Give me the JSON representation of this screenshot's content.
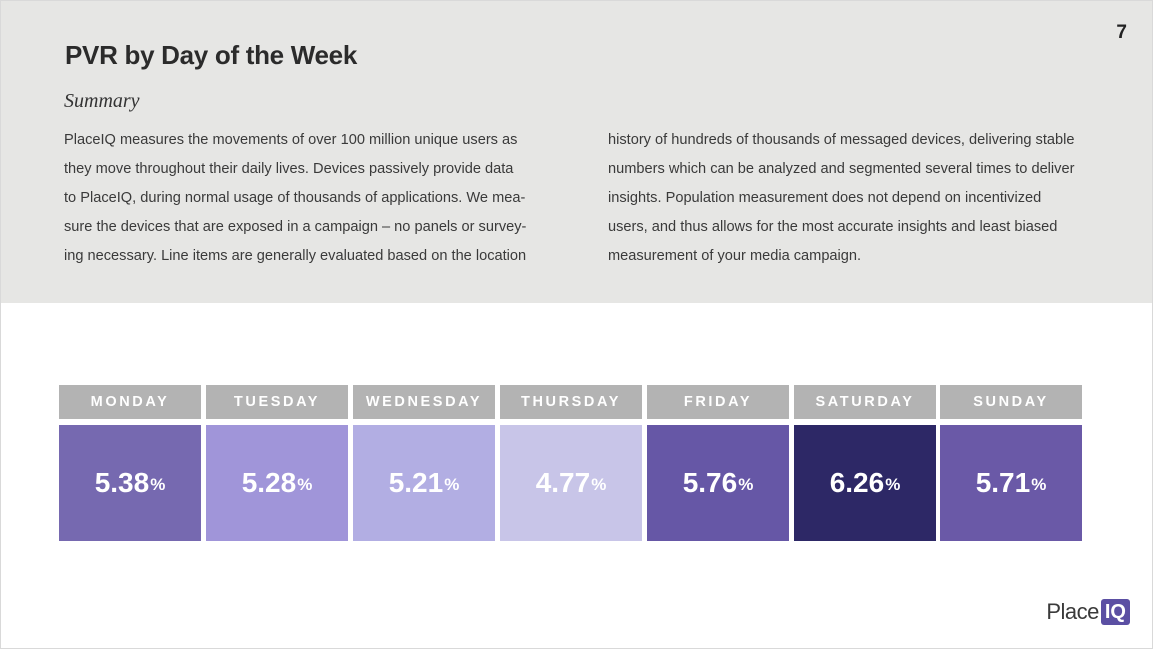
{
  "page": {
    "number": "7",
    "title": "PVR by Day of the Week"
  },
  "summary": {
    "heading": "Summary",
    "left_lines": [
      "PlaceIQ measures the movements of over 100 million unique users as",
      "they move throughout their daily lives. Devices passively provide data",
      "to PlaceIQ, during normal usage of thousands of applications. We mea-",
      "sure the devices that are exposed in a campaign – no panels or survey-",
      "ing necessary. Line items are generally evaluated based on the location"
    ],
    "right_lines": [
      "history of hundreds of thousands of messaged devices, delivering stable",
      "numbers which can be analyzed and segmented several times to deliver",
      "insights. Population measurement does not depend on incentivized",
      "users, and thus allows for the most accurate insights and least biased",
      "measurement of your media campaign."
    ]
  },
  "days": [
    {
      "label": "MONDAY",
      "value": "5.38",
      "unit": "%",
      "color": "#7669b0"
    },
    {
      "label": "TUESDAY",
      "value": "5.28",
      "unit": "%",
      "color": "#a095d9"
    },
    {
      "label": "WEDNESDAY",
      "value": "5.21",
      "unit": "%",
      "color": "#b2aee3"
    },
    {
      "label": "THURSDAY",
      "value": "4.77",
      "unit": "%",
      "color": "#c8c5e8"
    },
    {
      "label": "FRIDAY",
      "value": "5.76",
      "unit": "%",
      "color": "#6657a6"
    },
    {
      "label": "SATURDAY",
      "value": "6.26",
      "unit": "%",
      "color": "#2d2866"
    },
    {
      "label": "SUNDAY",
      "value": "5.71",
      "unit": "%",
      "color": "#6a59a7"
    }
  ],
  "logo": {
    "text": "Place",
    "badge": "IQ",
    "badge_color": "#5b4fa3"
  }
}
